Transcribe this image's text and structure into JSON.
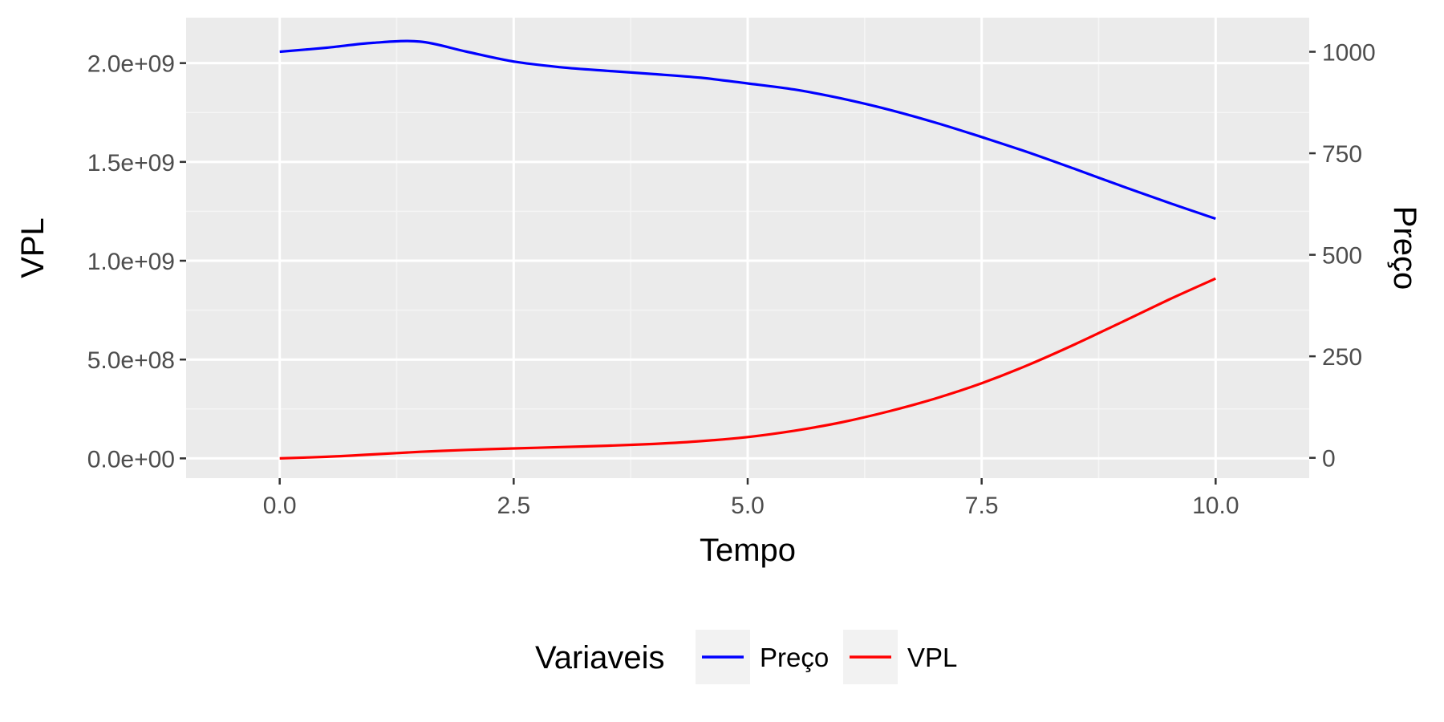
{
  "chart_data": {
    "type": "line",
    "xlabel": "Tempo",
    "ylabel": "VPL",
    "y2label": "Preço",
    "xlim": [
      -1,
      11
    ],
    "ylim": [
      -100000000,
      2230000000
    ],
    "y2lim": [
      -50,
      1084
    ],
    "x_ticks": [
      {
        "value": 0,
        "label": "0.0"
      },
      {
        "value": 2.5,
        "label": "2.5"
      },
      {
        "value": 5,
        "label": "5.0"
      },
      {
        "value": 7.5,
        "label": "7.5"
      },
      {
        "value": 10,
        "label": "10.0"
      }
    ],
    "y_ticks": [
      {
        "value": 0,
        "label": "0.0e+00"
      },
      {
        "value": 500000000,
        "label": "5.0e+08"
      },
      {
        "value": 1000000000,
        "label": "1.0e+09"
      },
      {
        "value": 1500000000,
        "label": "1.5e+09"
      },
      {
        "value": 2000000000,
        "label": "2.0e+09"
      }
    ],
    "y2_ticks": [
      {
        "value": 0,
        "label": "0"
      },
      {
        "value": 250,
        "label": "250"
      },
      {
        "value": 500,
        "label": "500"
      },
      {
        "value": 750,
        "label": "750"
      },
      {
        "value": 1000,
        "label": "1000"
      }
    ],
    "x_minor_breaks": [
      1.25,
      3.75,
      6.25,
      8.75
    ],
    "y_minor_breaks": [
      250000000,
      750000000,
      1250000000,
      1750000000
    ],
    "grid": true,
    "legend": {
      "title": "Variaveis",
      "position": "bottom"
    },
    "series": [
      {
        "name": "Preço",
        "axis": "right",
        "color": "#0000ff",
        "x": [
          0,
          0.5,
          1,
          1.5,
          2,
          2.5,
          3,
          3.5,
          4,
          4.5,
          5,
          5.5,
          6,
          6.5,
          7,
          7.5,
          8,
          8.5,
          9,
          9.5,
          10
        ],
        "y": [
          1000,
          1010,
          1022,
          1025,
          1000,
          976,
          962,
          953,
          945,
          936,
          922,
          907,
          885,
          858,
          826,
          790,
          752,
          711,
          669,
          628,
          589
        ]
      },
      {
        "name": "VPL",
        "axis": "left",
        "color": "#ff0000",
        "x": [
          0,
          0.5,
          1,
          1.5,
          2,
          2.5,
          3,
          3.5,
          4,
          4.5,
          5,
          5.5,
          6,
          6.5,
          7,
          7.5,
          8,
          8.5,
          9,
          9.5,
          10
        ],
        "y": [
          0,
          8000000,
          20000000,
          33000000,
          43000000,
          50000000,
          57000000,
          64000000,
          73000000,
          87000000,
          108000000,
          140000000,
          182000000,
          237000000,
          302000000,
          380000000,
          473000000,
          578000000,
          690000000,
          803000000,
          910000000
        ]
      }
    ]
  },
  "colors": {
    "panel_background": "#ebebeb",
    "grid_major": "#ffffff",
    "grid_minor": "#f5f5f5",
    "tick_text": "#4d4d4d",
    "tick_mark": "#333333",
    "legend_key_background": "#f2f2f2"
  }
}
